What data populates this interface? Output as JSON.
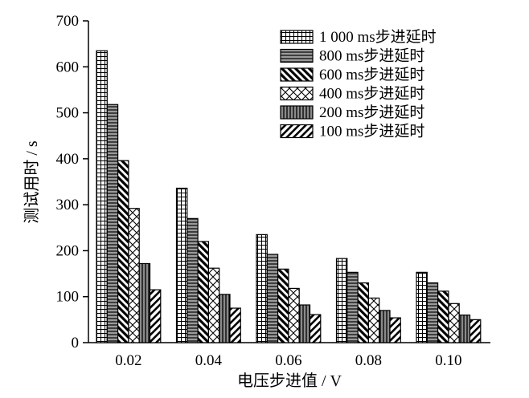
{
  "chart_data": {
    "type": "bar",
    "xlabel": "电压步进值 / V",
    "ylabel": "测试用时 / s",
    "ylim": [
      0,
      700
    ],
    "yticks": [
      0,
      100,
      200,
      300,
      400,
      500,
      600,
      700
    ],
    "categories": [
      "0.02",
      "0.04",
      "0.06",
      "0.08",
      "0.10"
    ],
    "grid": false,
    "legend_position": "top-right",
    "series": [
      {
        "name": "1 000 ms步进延时",
        "pattern": "grid-icon",
        "values": [
          635,
          336,
          235,
          183,
          153
        ]
      },
      {
        "name": "800 ms步进延时",
        "pattern": "horizontal-lines-icon",
        "values": [
          518,
          270,
          192,
          153,
          130
        ]
      },
      {
        "name": "600 ms步进延时",
        "pattern": "back-diagonal-icon",
        "values": [
          396,
          220,
          160,
          130,
          112
        ]
      },
      {
        "name": "400 ms步进延时",
        "pattern": "crosshatch-icon",
        "values": [
          292,
          162,
          118,
          97,
          85
        ]
      },
      {
        "name": "200 ms步进延时",
        "pattern": "vertical-lines-icon",
        "values": [
          172,
          105,
          82,
          70,
          60
        ]
      },
      {
        "name": "100 ms步进延时",
        "pattern": "forward-diagonal-icon",
        "values": [
          115,
          75,
          61,
          54,
          50
        ]
      }
    ]
  }
}
